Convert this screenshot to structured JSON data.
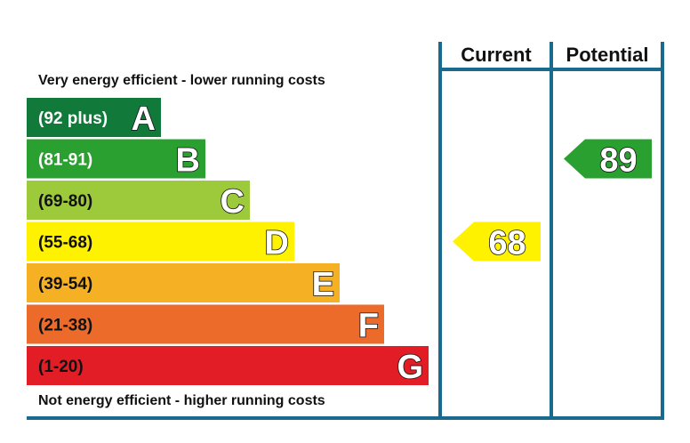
{
  "chart_data": {
    "type": "energy-efficiency-rating",
    "top_caption": "Very energy efficient - lower running costs",
    "bottom_caption": "Not energy efficient - higher running costs",
    "columns": [
      "Current",
      "Potential"
    ],
    "bands": [
      {
        "letter": "A",
        "range": "(92 plus)",
        "color": "#117a3b",
        "text_color": "#ffffff"
      },
      {
        "letter": "B",
        "range": "(81-91)",
        "color": "#2aa030",
        "text_color": "#ffffff"
      },
      {
        "letter": "C",
        "range": "(69-80)",
        "color": "#9dca3b",
        "text_color": "#111111"
      },
      {
        "letter": "D",
        "range": "(55-68)",
        "color": "#fff200",
        "text_color": "#111111"
      },
      {
        "letter": "E",
        "range": "(39-54)",
        "color": "#f6b023",
        "text_color": "#111111"
      },
      {
        "letter": "F",
        "range": "(21-38)",
        "color": "#ec6a2a",
        "text_color": "#111111"
      },
      {
        "letter": "G",
        "range": "(1-20)",
        "color": "#e31d25",
        "text_color": "#111111"
      }
    ],
    "current": {
      "value": "68",
      "band": "D",
      "color": "#fff200"
    },
    "potential": {
      "value": "89",
      "band": "B",
      "color": "#2aa030"
    },
    "frame_color": "#1a6a8e"
  }
}
